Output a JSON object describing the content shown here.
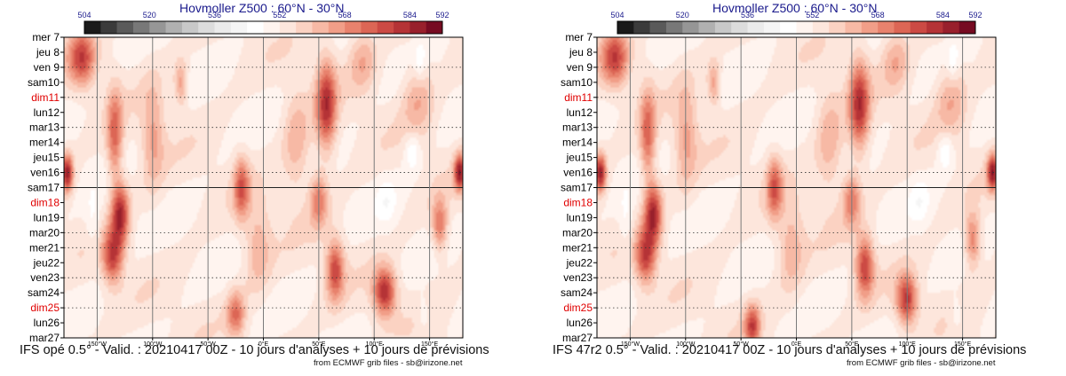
{
  "chart_data": [
    {
      "type": "heatmap",
      "title": "Hovmoller Z500 : 60°N - 30°N",
      "footer": "IFS opé 0.5° - Valid. : 20210417 00Z - 10 jours d'analyses + 10 jours de prévisions",
      "credit": "from ECMWF grib files - sb@irizone.net",
      "colorbar": {
        "tick_labels": [
          "504",
          "520",
          "536",
          "552",
          "568",
          "584",
          "592"
        ],
        "tick_values": [
          504,
          520,
          536,
          552,
          568,
          584,
          592
        ],
        "range": [
          504,
          592
        ],
        "colors": [
          "#1a1a1a",
          "#3b3b3b",
          "#5a5a5a",
          "#787878",
          "#969696",
          "#b0b0b0",
          "#c8c8c8",
          "#dcdcdc",
          "#ebebeb",
          "#f5f5f5",
          "#ffffff",
          "#fff4ef",
          "#fde6dc",
          "#fbd2c2",
          "#f7b9a5",
          "#f19e88",
          "#e8826d",
          "#dc6655",
          "#cc4a44",
          "#b53336",
          "#98202c",
          "#760b22"
        ]
      },
      "days": [
        "mer 7",
        "jeu 8",
        "ven 9",
        "sam10",
        "dim11",
        "lun12",
        "mar13",
        "mer14",
        "jeu15",
        "ven16",
        "sam17",
        "dim18",
        "lun19",
        "mar20",
        "mer21",
        "jeu22",
        "ven23",
        "sam24",
        "dim25",
        "lun26",
        "mar27"
      ],
      "weekend_days": [
        "dim11",
        "dim18",
        "dim25"
      ],
      "analysis_end_day": "sam17",
      "lon_range": [
        -180,
        180
      ],
      "lon_ticks": [
        -150,
        -100,
        -50,
        0,
        50,
        100,
        150
      ],
      "lon_labels": [
        "150°W",
        "100°W",
        "50°W",
        "0°E",
        "50°E",
        "100°E",
        "150°E"
      ],
      "anomaly_blobs": [
        {
          "lon": -165,
          "day": 1.3,
          "dlon": 12,
          "dday": 1.8,
          "amp": 0.7
        },
        {
          "lon": -178,
          "day": 9.0,
          "dlon": 5,
          "dday": 1.2,
          "amp": 0.95
        },
        {
          "lon": 178,
          "day": 9.0,
          "dlon": 5,
          "dday": 1.2,
          "amp": 0.9
        },
        {
          "lon": -135,
          "day": 6.5,
          "dlon": 7,
          "dday": 3.0,
          "amp": 0.6
        },
        {
          "lon": -130,
          "day": 11.8,
          "dlon": 8,
          "dday": 2.0,
          "amp": 0.85
        },
        {
          "lon": -137,
          "day": 14.6,
          "dlon": 9,
          "dday": 1.8,
          "amp": 0.75
        },
        {
          "lon": -100,
          "day": 6.5,
          "dlon": 10,
          "dday": 3.5,
          "amp": 0.35
        },
        {
          "lon": -75,
          "day": 3.0,
          "dlon": 6,
          "dday": 1.5,
          "amp": 0.4
        },
        {
          "lon": -20,
          "day": 10.0,
          "dlon": 7,
          "dday": 2.0,
          "amp": 0.6
        },
        {
          "lon": -25,
          "day": 18.5,
          "dlon": 8,
          "dday": 1.5,
          "amp": 0.55
        },
        {
          "lon": 57,
          "day": 4.5,
          "dlon": 9,
          "dday": 3.0,
          "amp": 0.8
        },
        {
          "lon": 65,
          "day": 15.5,
          "dlon": 8,
          "dday": 2.0,
          "amp": 0.7
        },
        {
          "lon": 50,
          "day": 10.8,
          "dlon": 8,
          "dday": 1.8,
          "amp": 0.5
        },
        {
          "lon": 110,
          "day": 17.0,
          "dlon": 10,
          "dday": 1.6,
          "amp": 0.85
        },
        {
          "lon": 30,
          "day": 7.0,
          "dlon": 12,
          "dday": 3.5,
          "amp": 0.3
        },
        {
          "lon": 140,
          "day": 4.0,
          "dlon": 14,
          "dday": 2.5,
          "amp": 0.3
        },
        {
          "lon": 160,
          "day": 12.5,
          "dlon": 7,
          "dday": 1.8,
          "amp": 0.55
        },
        {
          "lon": -5,
          "day": 14.0,
          "dlon": 12,
          "dday": 3.0,
          "amp": 0.3
        },
        {
          "lon": 90,
          "day": 1.5,
          "dlon": 12,
          "dday": 2.0,
          "amp": 0.3
        },
        {
          "lon": 135,
          "day": 7.5,
          "dlon": 7,
          "dday": 1.3,
          "amp": -0.25
        },
        {
          "lon": 142,
          "day": 1.5,
          "dlon": 5,
          "dday": 1.3,
          "amp": -0.2
        },
        {
          "lon": 112,
          "day": 11.0,
          "dlon": 8,
          "dday": 1.5,
          "amp": -0.15
        },
        {
          "lon": 145,
          "day": 18.5,
          "dlon": 6,
          "dday": 1.3,
          "amp": -0.15
        },
        {
          "lon": -155,
          "day": 12.5,
          "dlon": 6,
          "dday": 2.0,
          "amp": -0.15
        }
      ]
    },
    {
      "type": "heatmap",
      "title": "Hovmoller Z500 : 60°N - 30°N",
      "footer": "IFS 47r2 0.5° - Valid. : 20210417 00Z - 10 jours d'analyses + 10 jours de prévisions",
      "credit": "from ECMWF grib files - sb@irizone.net",
      "colorbar": {
        "tick_labels": [
          "504",
          "520",
          "536",
          "552",
          "568",
          "584",
          "592"
        ],
        "tick_values": [
          504,
          520,
          536,
          552,
          568,
          584,
          592
        ],
        "range": [
          504,
          592
        ],
        "colors": [
          "#1a1a1a",
          "#3b3b3b",
          "#5a5a5a",
          "#787878",
          "#969696",
          "#b0b0b0",
          "#c8c8c8",
          "#dcdcdc",
          "#ebebeb",
          "#f5f5f5",
          "#ffffff",
          "#fff4ef",
          "#fde6dc",
          "#fbd2c2",
          "#f7b9a5",
          "#f19e88",
          "#e8826d",
          "#dc6655",
          "#cc4a44",
          "#b53336",
          "#98202c",
          "#760b22"
        ]
      },
      "days": [
        "mer 7",
        "jeu 8",
        "ven 9",
        "sam10",
        "dim11",
        "lun12",
        "mar13",
        "mer14",
        "jeu15",
        "ven16",
        "sam17",
        "dim18",
        "lun19",
        "mar20",
        "mer21",
        "jeu22",
        "ven23",
        "sam24",
        "dim25",
        "lun26",
        "mar27"
      ],
      "weekend_days": [
        "dim11",
        "dim18",
        "dim25"
      ],
      "analysis_end_day": "sam17",
      "lon_range": [
        -180,
        180
      ],
      "lon_ticks": [
        -150,
        -100,
        -50,
        0,
        50,
        100,
        150
      ],
      "lon_labels": [
        "150°W",
        "100°W",
        "50°W",
        "0°E",
        "50°E",
        "100°E",
        "150°E"
      ],
      "anomaly_blobs": [
        {
          "lon": -165,
          "day": 1.3,
          "dlon": 12,
          "dday": 1.8,
          "amp": 0.7
        },
        {
          "lon": -178,
          "day": 9.0,
          "dlon": 5,
          "dday": 1.2,
          "amp": 0.95
        },
        {
          "lon": 178,
          "day": 9.0,
          "dlon": 5,
          "dday": 1.2,
          "amp": 0.9
        },
        {
          "lon": -135,
          "day": 6.5,
          "dlon": 7,
          "dday": 3.0,
          "amp": 0.6
        },
        {
          "lon": -130,
          "day": 11.8,
          "dlon": 8,
          "dday": 2.0,
          "amp": 0.85
        },
        {
          "lon": -137,
          "day": 14.6,
          "dlon": 9,
          "dday": 1.8,
          "amp": 0.75
        },
        {
          "lon": -100,
          "day": 6.5,
          "dlon": 10,
          "dday": 3.5,
          "amp": 0.35
        },
        {
          "lon": -75,
          "day": 3.0,
          "dlon": 6,
          "dday": 1.5,
          "amp": 0.4
        },
        {
          "lon": -20,
          "day": 10.0,
          "dlon": 7,
          "dday": 2.0,
          "amp": 0.6
        },
        {
          "lon": -40,
          "day": 19.3,
          "dlon": 7,
          "dday": 1.4,
          "amp": 0.7
        },
        {
          "lon": 57,
          "day": 4.5,
          "dlon": 9,
          "dday": 3.0,
          "amp": 0.8
        },
        {
          "lon": 62,
          "day": 15.3,
          "dlon": 8,
          "dday": 2.0,
          "amp": 0.75
        },
        {
          "lon": 50,
          "day": 10.8,
          "dlon": 8,
          "dday": 1.8,
          "amp": 0.5
        },
        {
          "lon": 100,
          "day": 17.5,
          "dlon": 9,
          "dday": 1.6,
          "amp": 0.8
        },
        {
          "lon": 30,
          "day": 7.0,
          "dlon": 12,
          "dday": 3.5,
          "amp": 0.3
        },
        {
          "lon": 140,
          "day": 4.0,
          "dlon": 14,
          "dday": 2.5,
          "amp": 0.3
        },
        {
          "lon": 160,
          "day": 13.5,
          "dlon": 7,
          "dday": 1.8,
          "amp": 0.55
        },
        {
          "lon": -5,
          "day": 14.0,
          "dlon": 12,
          "dday": 3.0,
          "amp": 0.3
        },
        {
          "lon": 90,
          "day": 1.5,
          "dlon": 12,
          "dday": 2.0,
          "amp": 0.3
        },
        {
          "lon": 135,
          "day": 7.5,
          "dlon": 7,
          "dday": 1.3,
          "amp": -0.25
        },
        {
          "lon": 142,
          "day": 1.5,
          "dlon": 5,
          "dday": 1.3,
          "amp": -0.2
        },
        {
          "lon": 112,
          "day": 11.0,
          "dlon": 8,
          "dday": 1.5,
          "amp": -0.15
        },
        {
          "lon": 145,
          "day": 18.5,
          "dlon": 6,
          "dday": 1.3,
          "amp": -0.15
        },
        {
          "lon": -155,
          "day": 12.5,
          "dlon": 6,
          "dday": 2.0,
          "amp": -0.15
        }
      ]
    }
  ]
}
